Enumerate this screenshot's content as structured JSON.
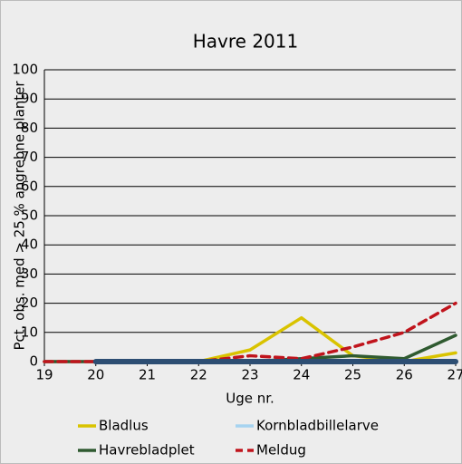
{
  "chart_data": {
    "type": "line",
    "title": "Havre 2011",
    "x_label": "Uge nr.",
    "y_label": "Pct. obs. med > 25 % angrebne planter",
    "x": [
      19,
      20,
      21,
      22,
      23,
      24,
      25,
      26,
      27
    ],
    "series": [
      {
        "name": "Bladlus",
        "color": "#d9c300",
        "values": [
          0,
          0,
          0,
          0,
          4,
          15,
          2,
          0,
          3
        ]
      },
      {
        "name": "Kornbladbillelarve",
        "color": "#a6d3f0",
        "values": [
          0,
          0,
          0,
          0,
          0,
          0,
          0,
          0,
          0
        ]
      },
      {
        "name": "Havrebladplet",
        "color": "#2f5a30",
        "values": [
          0,
          0,
          0,
          0,
          0,
          1,
          2,
          1,
          9
        ]
      },
      {
        "name": "Meldug",
        "color": "#c0141c",
        "dashed": true,
        "values": [
          0,
          0,
          0,
          0,
          2,
          1,
          5,
          10,
          20
        ]
      },
      {
        "color": "#2d4e73",
        "values": [
          null,
          0,
          0,
          0,
          0,
          0,
          0,
          0,
          0
        ]
      }
    ],
    "xlim": [
      19,
      27
    ],
    "ylim": [
      0,
      100
    ],
    "xticks": [
      19,
      20,
      21,
      22,
      23,
      24,
      25,
      26,
      27
    ],
    "yticks": [
      0,
      10,
      20,
      30,
      40,
      50,
      60,
      70,
      80,
      90,
      100
    ],
    "grid": true
  }
}
